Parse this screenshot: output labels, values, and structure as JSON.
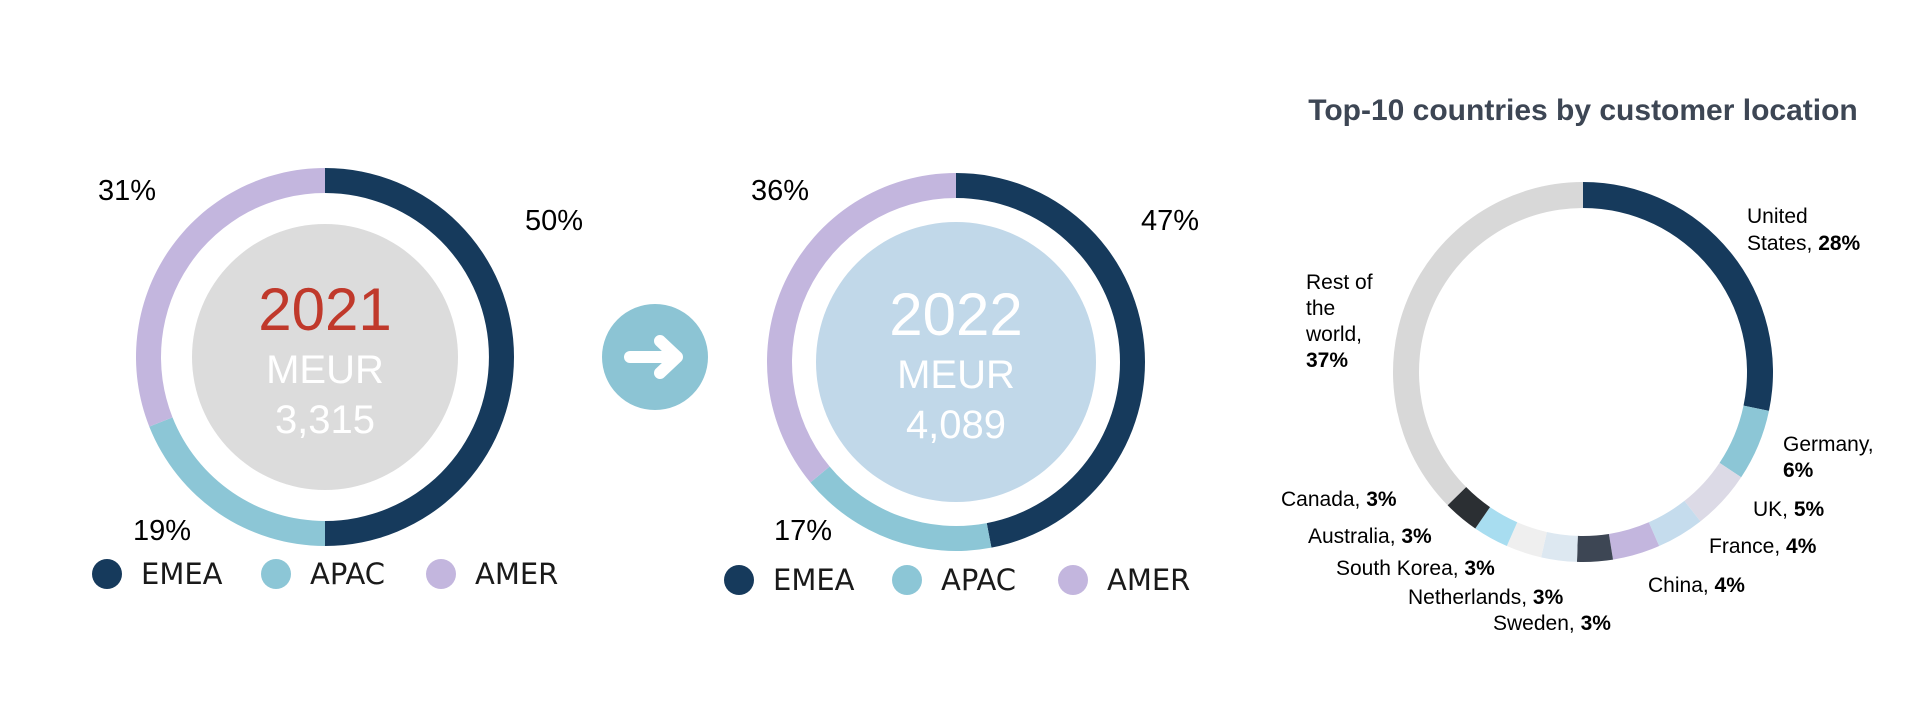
{
  "colors": {
    "emea": "#163a5c",
    "apac": "#8cc6d6",
    "amer": "#c3b6de",
    "rest": "#d8d8d8",
    "arrow_circle": "#8cc4d4",
    "center_2021": "#dcdcdc",
    "center_2022": "#c1d8e9",
    "year_2021": "#c0392b",
    "year_2022": "#ffffff"
  },
  "center_2021": {
    "year": "2021",
    "unit": "MEUR",
    "total": "3,315"
  },
  "center_2022": {
    "year": "2022",
    "unit": "MEUR",
    "total": "4,089"
  },
  "legend": [
    "EMEA",
    "APAC",
    "AMER"
  ],
  "arrow_icon": "arrow-right-icon",
  "chart_data": [
    {
      "type": "pie",
      "variant": "donut",
      "categories": [
        "EMEA",
        "APAC",
        "AMER"
      ],
      "values": [
        50,
        19,
        31
      ],
      "labels": [
        "50%",
        "19%",
        "31%"
      ]
    },
    {
      "type": "pie",
      "variant": "donut",
      "categories": [
        "EMEA",
        "APAC",
        "AMER"
      ],
      "values": [
        47,
        17,
        36
      ],
      "labels": [
        "47%",
        "17%",
        "36%"
      ]
    },
    {
      "type": "pie",
      "variant": "donut",
      "title": "Top-10 countries by customer location",
      "categories": [
        "United States",
        "Germany",
        "UK",
        "France",
        "China",
        "Sweden",
        "Netherlands",
        "South Korea",
        "Australia",
        "Canada",
        "Rest of the world"
      ],
      "values": [
        28,
        6,
        5,
        4,
        4,
        3,
        3,
        3,
        3,
        3,
        37
      ],
      "value_labels": [
        "28%",
        "6%",
        "5%",
        "4%",
        "4%",
        "3%",
        "3%",
        "3%",
        "3%",
        "3%",
        "37%"
      ],
      "colors": [
        "#163a5c",
        "#8cc6d6",
        "#dcdae6",
        "#c5dced",
        "#c3b6de",
        "#3d4654",
        "#dde8f1",
        "#efefef",
        "#a8ddf0",
        "#2b2f33",
        "#d8d8d8"
      ]
    }
  ]
}
